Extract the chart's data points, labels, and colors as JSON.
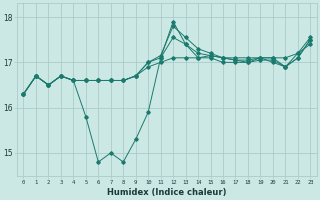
{
  "xlabel": "Humidex (Indice chaleur)",
  "bg_color": "#cce8e4",
  "grid_color": "#aacccc",
  "line_color": "#1a7a6e",
  "xlim": [
    -0.5,
    23.5
  ],
  "ylim": [
    14.5,
    18.3
  ],
  "yticks": [
    15,
    16,
    17,
    18
  ],
  "xtick_labels": [
    "0",
    "1",
    "2",
    "3",
    "4",
    "5",
    "6",
    "7",
    "8",
    "9",
    "10",
    "11",
    "12",
    "13",
    "14",
    "15",
    "16",
    "17",
    "18",
    "19",
    "20",
    "21",
    "22",
    "23"
  ],
  "series": [
    [
      16.3,
      16.7,
      16.5,
      16.7,
      16.6,
      15.8,
      14.8,
      15.0,
      14.8,
      15.3,
      15.9,
      17.1,
      17.9,
      17.4,
      17.1,
      17.1,
      17.0,
      17.0,
      17.0,
      17.1,
      17.0,
      16.9,
      17.1,
      17.5
    ],
    [
      16.3,
      16.7,
      16.5,
      16.7,
      16.6,
      16.6,
      16.6,
      16.6,
      16.6,
      16.7,
      16.9,
      17.0,
      17.1,
      17.1,
      17.1,
      17.15,
      17.1,
      17.1,
      17.1,
      17.1,
      17.1,
      17.1,
      17.2,
      17.4
    ],
    [
      16.3,
      16.7,
      16.5,
      16.7,
      16.6,
      16.6,
      16.6,
      16.6,
      16.6,
      16.7,
      17.0,
      17.15,
      17.8,
      17.55,
      17.3,
      17.2,
      17.1,
      17.05,
      17.05,
      17.1,
      17.1,
      16.9,
      17.2,
      17.55
    ],
    [
      16.3,
      16.7,
      16.5,
      16.7,
      16.6,
      16.6,
      16.6,
      16.6,
      16.6,
      16.7,
      17.0,
      17.1,
      17.55,
      17.4,
      17.2,
      17.15,
      17.1,
      17.05,
      17.0,
      17.05,
      17.05,
      16.9,
      17.1,
      17.5
    ]
  ]
}
